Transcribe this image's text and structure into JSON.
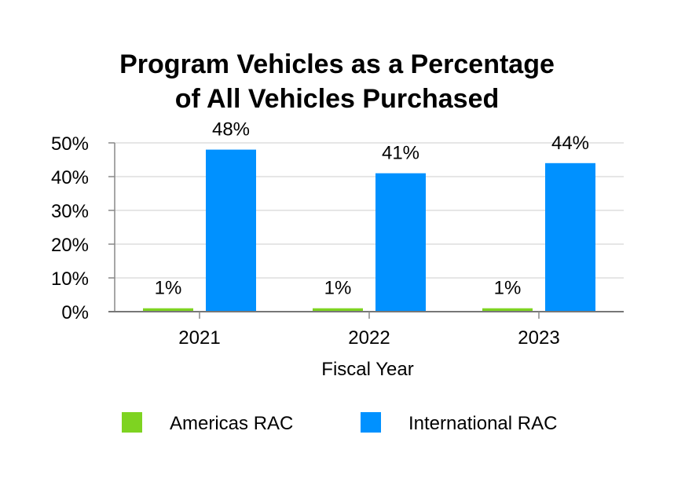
{
  "chart_data": {
    "type": "bar",
    "title": [
      "Program Vehicles as a Percentage",
      "of All Vehicles Purchased"
    ],
    "xlabel": "Fiscal Year",
    "ylabel": "",
    "categories": [
      "2021",
      "2022",
      "2023"
    ],
    "series": [
      {
        "name": "Americas RAC",
        "color": "#7ed321",
        "values": [
          1,
          1,
          1
        ],
        "labels": [
          "1%",
          "1%",
          "1%"
        ]
      },
      {
        "name": "International RAC",
        "color": "#0091ff",
        "values": [
          48,
          41,
          44
        ],
        "labels": [
          "48%",
          "41%",
          "44%"
        ]
      }
    ],
    "ylim": [
      0,
      50
    ],
    "yticks": [
      0,
      10,
      20,
      30,
      40,
      50
    ],
    "ytick_labels": [
      "0%",
      "10%",
      "20%",
      "30%",
      "40%",
      "50%"
    ],
    "grid": true,
    "legend": "bottom"
  }
}
